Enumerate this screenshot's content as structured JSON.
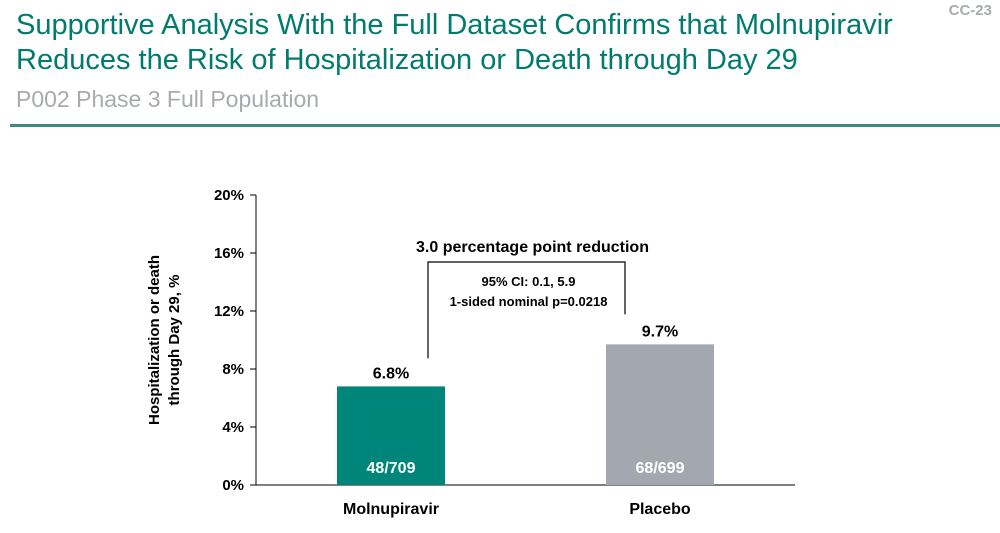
{
  "slide_id": "CC-23",
  "title_line1": "Supportive Analysis With the Full Dataset Confirms that Molnupiravir",
  "title_line2": "Reduces the Risk of Hospitalization or Death through Day 29",
  "subtitle": "P002 Phase 3 Full Population",
  "colors": {
    "title": "#007b6e",
    "muted": "#a7abb0",
    "molnupiravir": "#00857a",
    "placebo": "#a3a8b0",
    "rule": "#3a8c82"
  },
  "chart_data": {
    "type": "bar",
    "categories": [
      "Molnupiravir",
      "Placebo"
    ],
    "values": [
      6.8,
      9.7
    ],
    "value_labels": [
      "6.8%",
      "9.7%"
    ],
    "inner_labels": [
      "48/709",
      "68/699"
    ],
    "bar_colors": [
      "#00857a",
      "#a3a8b0"
    ],
    "ylabel_line1": "Hospitalization or death",
    "ylabel_line2": "through Day 29, %",
    "ylim": [
      0,
      20
    ],
    "yticks": [
      0,
      4,
      8,
      12,
      16,
      20
    ],
    "ytick_labels": [
      "0%",
      "4%",
      "8%",
      "12%",
      "16%",
      "20%"
    ],
    "comparison": {
      "label": "3.0 percentage point reduction",
      "ci": "95% CI: 0.1, 5.9",
      "p_value": "1-sided nominal p=0.0218"
    }
  }
}
